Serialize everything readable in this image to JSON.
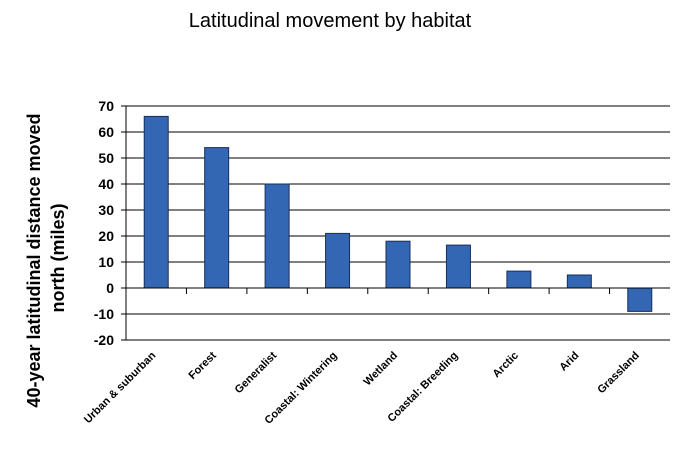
{
  "chart_data": {
    "type": "bar",
    "title": "Latitudinal movement by habitat",
    "ylabel_lines": [
      "40-year latitudinal distance moved",
      "north (miles)"
    ],
    "xlabel": "",
    "categories": [
      "Urban & suburban",
      "Forest",
      "Generalist",
      "Coastal: Wintering",
      "Wetland",
      "Coastal: Breeding",
      "Arctic",
      "Arid",
      "Grassland"
    ],
    "values": [
      66,
      54,
      40,
      21,
      18,
      16.5,
      6.5,
      5,
      -9
    ],
    "ylim": [
      -20,
      70
    ],
    "yticks": [
      70,
      60,
      50,
      40,
      30,
      20,
      10,
      0,
      -10,
      -20
    ],
    "grid": true,
    "legend": "none",
    "bar_color": "#3366b3"
  }
}
